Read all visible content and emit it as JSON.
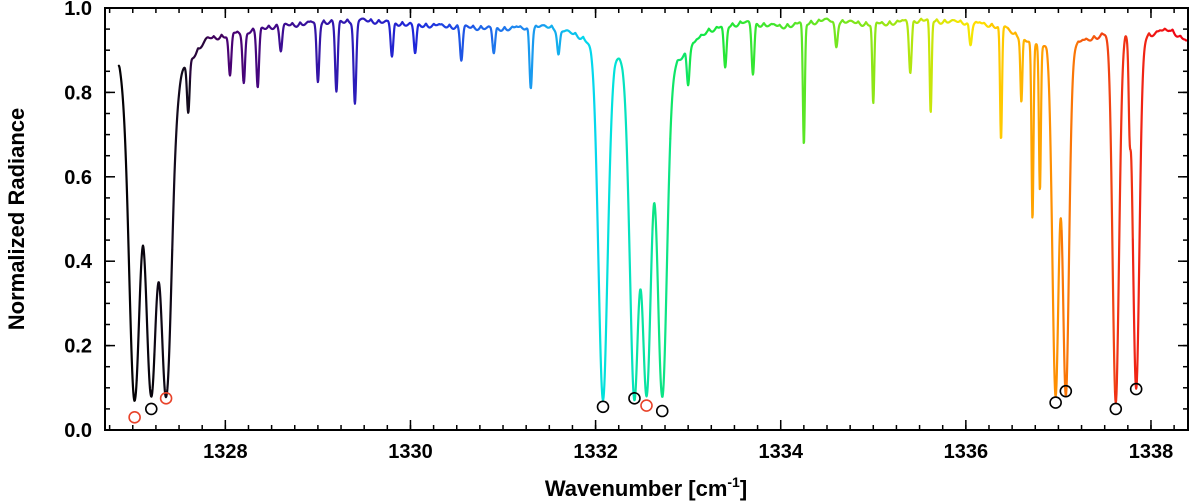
{
  "chart_data": {
    "type": "line",
    "title": "",
    "xlabel": "Wavenumber [cm",
    "xlabel_sup": "-1",
    "xlabel_close": "]",
    "ylabel": "Normalized Radiance",
    "xlim": [
      1326.7,
      1338.4
    ],
    "ylim": [
      0.0,
      1.0
    ],
    "x_ticks": [
      1328,
      1330,
      1332,
      1334,
      1336,
      1338
    ],
    "x_tick_labels": [
      "1328",
      "1330",
      "1332",
      "1334",
      "1336",
      "1338"
    ],
    "y_ticks": [
      0.0,
      0.2,
      0.4,
      0.6,
      0.8,
      1.0
    ],
    "y_tick_labels": [
      "0.0",
      "0.2",
      "0.4",
      "0.6",
      "0.8",
      "1.0"
    ],
    "grid": false,
    "legend": "none",
    "colormap": "rainbow (black -> purple -> blue -> cyan -> green -> yellow -> orange -> red) along wavenumber",
    "baseline": [
      [
        1326.85,
        0.88
      ],
      [
        1327.5,
        0.85
      ],
      [
        1327.8,
        0.93
      ],
      [
        1328.5,
        0.96
      ],
      [
        1329.0,
        0.97
      ],
      [
        1329.5,
        0.975
      ],
      [
        1330.0,
        0.965
      ],
      [
        1330.5,
        0.96
      ],
      [
        1331.0,
        0.955
      ],
      [
        1331.5,
        0.96
      ],
      [
        1331.8,
        0.94
      ],
      [
        1332.3,
        0.88
      ],
      [
        1332.8,
        0.86
      ],
      [
        1333.2,
        0.95
      ],
      [
        1333.6,
        0.97
      ],
      [
        1334.0,
        0.96
      ],
      [
        1334.5,
        0.975
      ],
      [
        1335.0,
        0.965
      ],
      [
        1335.5,
        0.975
      ],
      [
        1336.0,
        0.97
      ],
      [
        1336.4,
        0.96
      ],
      [
        1336.7,
        0.92
      ],
      [
        1337.2,
        0.92
      ],
      [
        1337.6,
        0.95
      ],
      [
        1338.0,
        0.94
      ],
      [
        1338.2,
        0.955
      ],
      [
        1338.4,
        0.92
      ]
    ],
    "strong_lines": [
      {
        "center": 1327.02,
        "min": 0.07,
        "width": 0.06
      },
      {
        "center": 1327.2,
        "min": 0.08,
        "width": 0.06
      },
      {
        "center": 1327.36,
        "min": 0.08,
        "width": 0.06
      },
      {
        "center": 1332.08,
        "min": 0.08,
        "width": 0.05
      },
      {
        "center": 1332.42,
        "min": 0.08,
        "width": 0.05
      },
      {
        "center": 1332.55,
        "min": 0.08,
        "width": 0.05
      },
      {
        "center": 1332.72,
        "min": 0.08,
        "width": 0.05
      },
      {
        "center": 1336.97,
        "min": 0.08,
        "width": 0.035
      },
      {
        "center": 1337.08,
        "min": 0.09,
        "width": 0.035
      },
      {
        "center": 1337.62,
        "min": 0.07,
        "width": 0.035
      },
      {
        "center": 1337.84,
        "min": 0.1,
        "width": 0.035
      }
    ],
    "weak_lines": [
      {
        "center": 1327.6,
        "depth": 0.12,
        "width": 0.02
      },
      {
        "center": 1328.05,
        "depth": 0.1,
        "width": 0.02
      },
      {
        "center": 1328.2,
        "depth": 0.12,
        "width": 0.02
      },
      {
        "center": 1328.35,
        "depth": 0.14,
        "width": 0.02
      },
      {
        "center": 1328.6,
        "depth": 0.06,
        "width": 0.02
      },
      {
        "center": 1329.0,
        "depth": 0.14,
        "width": 0.02
      },
      {
        "center": 1329.2,
        "depth": 0.17,
        "width": 0.02
      },
      {
        "center": 1329.4,
        "depth": 0.2,
        "width": 0.02
      },
      {
        "center": 1329.8,
        "depth": 0.08,
        "width": 0.02
      },
      {
        "center": 1330.05,
        "depth": 0.07,
        "width": 0.02
      },
      {
        "center": 1330.55,
        "depth": 0.08,
        "width": 0.02
      },
      {
        "center": 1330.9,
        "depth": 0.06,
        "width": 0.02
      },
      {
        "center": 1331.3,
        "depth": 0.14,
        "width": 0.02
      },
      {
        "center": 1331.6,
        "depth": 0.06,
        "width": 0.02
      },
      {
        "center": 1333.0,
        "depth": 0.08,
        "width": 0.02
      },
      {
        "center": 1333.4,
        "depth": 0.1,
        "width": 0.02
      },
      {
        "center": 1333.7,
        "depth": 0.12,
        "width": 0.02
      },
      {
        "center": 1334.25,
        "depth": 0.29,
        "width": 0.015
      },
      {
        "center": 1334.6,
        "depth": 0.06,
        "width": 0.02
      },
      {
        "center": 1335.0,
        "depth": 0.19,
        "width": 0.015
      },
      {
        "center": 1335.4,
        "depth": 0.12,
        "width": 0.02
      },
      {
        "center": 1335.62,
        "depth": 0.22,
        "width": 0.015
      },
      {
        "center": 1336.05,
        "depth": 0.05,
        "width": 0.02
      },
      {
        "center": 1336.38,
        "depth": 0.27,
        "width": 0.015
      },
      {
        "center": 1336.6,
        "depth": 0.15,
        "width": 0.015
      },
      {
        "center": 1336.72,
        "depth": 0.42,
        "width": 0.015
      },
      {
        "center": 1336.8,
        "depth": 0.35,
        "width": 0.015
      },
      {
        "center": 1337.77,
        "depth": 0.17,
        "width": 0.015
      }
    ],
    "markers": [
      {
        "x": 1327.02,
        "y": 0.03,
        "color": "#e8432a"
      },
      {
        "x": 1327.2,
        "y": 0.05,
        "color": "#000000"
      },
      {
        "x": 1327.36,
        "y": 0.075,
        "color": "#e8432a"
      },
      {
        "x": 1332.08,
        "y": 0.055,
        "color": "#000000"
      },
      {
        "x": 1332.42,
        "y": 0.075,
        "color": "#000000"
      },
      {
        "x": 1332.55,
        "y": 0.058,
        "color": "#e8432a"
      },
      {
        "x": 1332.72,
        "y": 0.045,
        "color": "#000000"
      },
      {
        "x": 1336.97,
        "y": 0.065,
        "color": "#000000"
      },
      {
        "x": 1337.08,
        "y": 0.092,
        "color": "#000000"
      },
      {
        "x": 1337.62,
        "y": 0.05,
        "color": "#000000"
      },
      {
        "x": 1337.84,
        "y": 0.097,
        "color": "#000000"
      }
    ]
  }
}
